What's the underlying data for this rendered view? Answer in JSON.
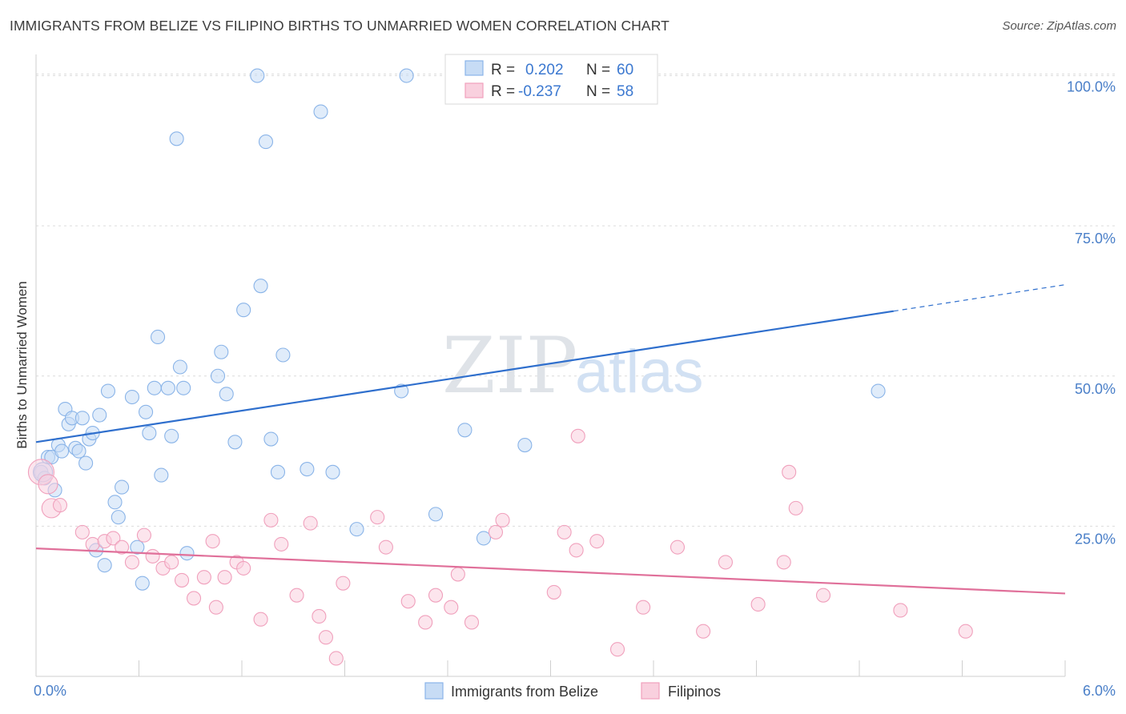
{
  "header": {
    "title": "IMMIGRANTS FROM BELIZE VS FILIPINO BIRTHS TO UNMARRIED WOMEN CORRELATION CHART",
    "source": "Source: ZipAtlas.com"
  },
  "watermark": {
    "zip": "ZIP",
    "atlas": "atlas"
  },
  "chart_data": {
    "type": "scatter",
    "ylabel": "Births to Unmarried Women",
    "xlim": [
      0,
      6
    ],
    "ylim": [
      0,
      103
    ],
    "x_tick_labels": {
      "left": "0.0%",
      "right": "6.0%"
    },
    "y_ticks": [
      {
        "value": 25,
        "label": "25.0%"
      },
      {
        "value": 50,
        "label": "50.0%"
      },
      {
        "value": 75,
        "label": "75.0%"
      },
      {
        "value": 100,
        "label": "100.0%"
      }
    ],
    "grid": true,
    "legend_position": "top-center",
    "stats": [
      {
        "r_label": "R =",
        "r_value": "0.202",
        "n_label": "N =",
        "n_value": "60"
      },
      {
        "r_label": "R =",
        "r_value": "-0.237",
        "n_label": "N =",
        "n_value": "58"
      }
    ],
    "series": [
      {
        "name": "Immigrants from Belize",
        "color": "#8ab4e8",
        "fill": "#c7dcf5",
        "trend_color": "#2f6fcd",
        "trend": {
          "x0": 0,
          "y0": 39.0,
          "x1": 5.0,
          "y1": 60.8,
          "x_dash_end": 6.0,
          "y_dash_end": 65.2
        },
        "points": [
          [
            0.03,
            34
          ],
          [
            0.05,
            33
          ],
          [
            0.07,
            36.5
          ],
          [
            0.09,
            36.5
          ],
          [
            0.11,
            31
          ],
          [
            0.13,
            38.5
          ],
          [
            0.15,
            37.5
          ],
          [
            0.17,
            44.5
          ],
          [
            0.19,
            42
          ],
          [
            0.21,
            43
          ],
          [
            0.23,
            38
          ],
          [
            0.25,
            37.5
          ],
          [
            0.27,
            43
          ],
          [
            0.29,
            35.5
          ],
          [
            0.31,
            39.5
          ],
          [
            0.33,
            40.5
          ],
          [
            0.35,
            21
          ],
          [
            0.37,
            43.5
          ],
          [
            0.4,
            18.5
          ],
          [
            0.42,
            47.5
          ],
          [
            0.46,
            29
          ],
          [
            0.48,
            26.5
          ],
          [
            0.5,
            31.5
          ],
          [
            0.56,
            46.5
          ],
          [
            0.59,
            21.5
          ],
          [
            0.62,
            15.5
          ],
          [
            0.64,
            44
          ],
          [
            0.66,
            40.5
          ],
          [
            0.69,
            48
          ],
          [
            0.71,
            56.5
          ],
          [
            0.73,
            33.5
          ],
          [
            0.77,
            48
          ],
          [
            0.79,
            40
          ],
          [
            0.82,
            89.5
          ],
          [
            0.84,
            51.5
          ],
          [
            0.86,
            48
          ],
          [
            0.88,
            20.5
          ],
          [
            1.06,
            50
          ],
          [
            1.08,
            54
          ],
          [
            1.11,
            47
          ],
          [
            1.16,
            39
          ],
          [
            1.21,
            61
          ],
          [
            1.29,
            100
          ],
          [
            1.31,
            65
          ],
          [
            1.34,
            89
          ],
          [
            1.37,
            39.5
          ],
          [
            1.41,
            34
          ],
          [
            1.44,
            53.5
          ],
          [
            1.58,
            34.5
          ],
          [
            1.66,
            94
          ],
          [
            1.73,
            34
          ],
          [
            1.87,
            24.5
          ],
          [
            2.13,
            47.5
          ],
          [
            2.16,
            100
          ],
          [
            2.33,
            27
          ],
          [
            2.5,
            41
          ],
          [
            2.61,
            23
          ],
          [
            2.85,
            38.5
          ],
          [
            4.91,
            47.5
          ],
          [
            0.04,
            34
          ]
        ]
      },
      {
        "name": "Filipinos",
        "color": "#f0a0bc",
        "fill": "#f9d0de",
        "trend_color": "#e0709a",
        "trend": {
          "x0": 0,
          "y0": 21.3,
          "x1": 6.0,
          "y1": 13.8
        },
        "points": [
          [
            0.03,
            34
          ],
          [
            0.07,
            32
          ],
          [
            0.09,
            28
          ],
          [
            0.14,
            28.5
          ],
          [
            0.27,
            24
          ],
          [
            0.33,
            22
          ],
          [
            0.4,
            22.5
          ],
          [
            0.45,
            23
          ],
          [
            0.5,
            21.5
          ],
          [
            0.56,
            19
          ],
          [
            0.63,
            23.5
          ],
          [
            0.68,
            20
          ],
          [
            0.74,
            18
          ],
          [
            0.79,
            19
          ],
          [
            0.85,
            16
          ],
          [
            0.92,
            13
          ],
          [
            0.98,
            16.5
          ],
          [
            1.03,
            22.5
          ],
          [
            1.05,
            11.5
          ],
          [
            1.1,
            16.5
          ],
          [
            1.17,
            19
          ],
          [
            1.21,
            18
          ],
          [
            1.31,
            9.5
          ],
          [
            1.37,
            26
          ],
          [
            1.43,
            22
          ],
          [
            1.52,
            13.5
          ],
          [
            1.6,
            25.5
          ],
          [
            1.65,
            10
          ],
          [
            1.69,
            6.5
          ],
          [
            1.75,
            3
          ],
          [
            1.79,
            15.5
          ],
          [
            1.99,
            26.5
          ],
          [
            2.04,
            21.5
          ],
          [
            2.17,
            12.5
          ],
          [
            2.27,
            9
          ],
          [
            2.33,
            13.5
          ],
          [
            2.42,
            11.5
          ],
          [
            2.46,
            17
          ],
          [
            2.54,
            9
          ],
          [
            2.68,
            24
          ],
          [
            2.72,
            26
          ],
          [
            3.02,
            14
          ],
          [
            3.08,
            24
          ],
          [
            3.15,
            21
          ],
          [
            3.16,
            40
          ],
          [
            3.27,
            22.5
          ],
          [
            3.39,
            4.5
          ],
          [
            3.54,
            11.5
          ],
          [
            3.74,
            21.5
          ],
          [
            3.89,
            7.5
          ],
          [
            4.02,
            19
          ],
          [
            4.21,
            12
          ],
          [
            4.36,
            19
          ],
          [
            4.39,
            34
          ],
          [
            4.43,
            28
          ],
          [
            4.59,
            13.5
          ],
          [
            5.04,
            11
          ],
          [
            5.42,
            7.5
          ]
        ]
      }
    ]
  }
}
